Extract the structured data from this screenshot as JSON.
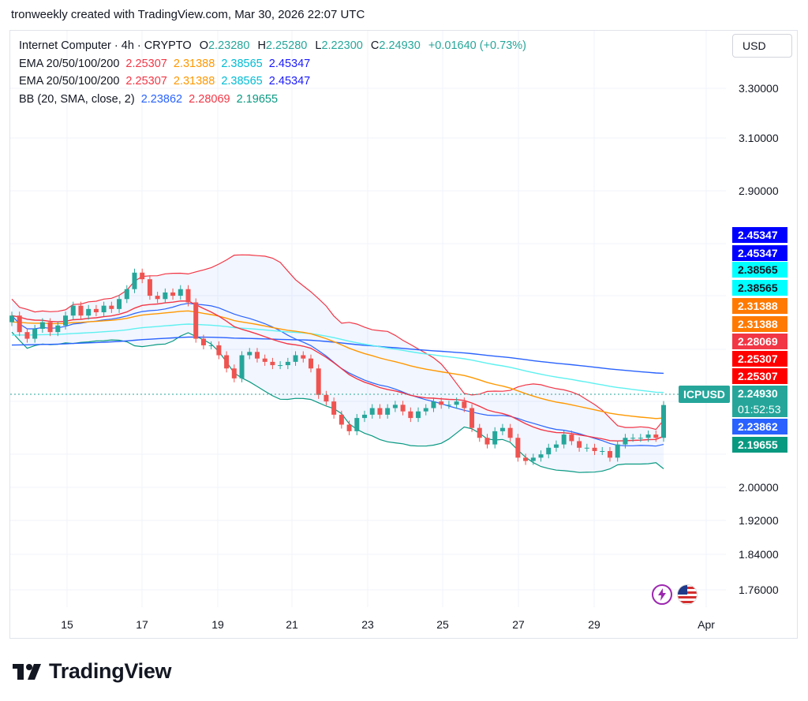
{
  "header": {
    "text": "tronweekly created with TradingView.com, Mar 30, 2026 22:07 UTC"
  },
  "legend": {
    "symbol_row": {
      "name": "Internet Computer · 4h · CRYPTO",
      "o_label": "O",
      "o": "2.23280",
      "h_label": "H",
      "h": "2.25280",
      "l_label": "L",
      "l": "2.22300",
      "c_label": "C",
      "c": "2.24930",
      "change": "+0.01640 (+0.73%)"
    },
    "ema_rows": [
      {
        "label": "EMA 20/50/100/200",
        "values": [
          "2.25307",
          "2.31388",
          "2.38565",
          "2.45347"
        ]
      },
      {
        "label": "EMA 20/50/100/200",
        "values": [
          "2.25307",
          "2.31388",
          "2.38565",
          "2.45347"
        ]
      }
    ],
    "bb_row": {
      "label": "BB (20, SMA, close, 2)",
      "values": [
        "2.23862",
        "2.28069",
        "2.19655"
      ]
    }
  },
  "currency_button": "USD",
  "colors": {
    "up": "#26a69a",
    "down": "#ef5350",
    "ema20": "#f23645",
    "ema50": "#ff9800",
    "ema100": "#5ef0f0",
    "ema200": "#2962ff",
    "bb_basis": "#2962ff",
    "bb_upper": "#f23645",
    "bb_lower": "#089981"
  },
  "last_price": {
    "symbol": "ICPUSD",
    "price": "2.24930",
    "countdown": "01:52:53"
  },
  "right_axis_tags": [
    {
      "value": "2.45347",
      "color": "#0000ff"
    },
    {
      "value": "2.45347",
      "color": "#0000ff"
    },
    {
      "value": "2.38565",
      "color": "#00ffff"
    },
    {
      "value": "2.38565",
      "color": "#00ffff"
    },
    {
      "value": "2.31388",
      "color": "#ff7a00"
    },
    {
      "value": "2.31388",
      "color": "#ff7a00"
    },
    {
      "value": "2.28069",
      "color": "#f23645"
    },
    {
      "value": "2.25307",
      "color": "#ff0000"
    },
    {
      "value": "2.25307",
      "color": "#ff0000"
    },
    {
      "value": "2.23862",
      "color": "#2962ff"
    },
    {
      "value": "2.19655",
      "color": "#089981"
    }
  ],
  "icons": [
    "lightning-icon",
    "us-flag-icon"
  ],
  "brand": {
    "name": "TradingView"
  },
  "chart_data": {
    "type": "candlestick",
    "title": "Internet Computer · 4h · CRYPTO",
    "y_axis_ticks": [
      "3.30000",
      "3.10000",
      "2.90000",
      "2.00000",
      "1.92000",
      "1.84000",
      "1.76000"
    ],
    "x_axis_ticks": [
      "15",
      "17",
      "19",
      "21",
      "23",
      "25",
      "27",
      "29",
      "Apr"
    ],
    "ylim": [
      1.72,
      3.43
    ],
    "grid": true,
    "candles_close": [
      2.52,
      2.47,
      2.45,
      2.48,
      2.5,
      2.47,
      2.49,
      2.52,
      2.55,
      2.52,
      2.54,
      2.53,
      2.55,
      2.54,
      2.57,
      2.6,
      2.65,
      2.63,
      2.58,
      2.57,
      2.59,
      2.58,
      2.6,
      2.56,
      2.45,
      2.43,
      2.43,
      2.4,
      2.36,
      2.33,
      2.4,
      2.41,
      2.39,
      2.38,
      2.37,
      2.37,
      2.38,
      2.4,
      2.39,
      2.36,
      2.28,
      2.26,
      2.22,
      2.19,
      2.17,
      2.21,
      2.22,
      2.24,
      2.22,
      2.24,
      2.25,
      2.23,
      2.21,
      2.23,
      2.24,
      2.26,
      2.25,
      2.25,
      2.26,
      2.24,
      2.18,
      2.15,
      2.13,
      2.17,
      2.18,
      2.15,
      2.09,
      2.08,
      2.09,
      2.1,
      2.12,
      2.13,
      2.16,
      2.14,
      2.12,
      2.12,
      2.11,
      2.11,
      2.09,
      2.13,
      2.15,
      2.15,
      2.15,
      2.16,
      2.15,
      2.2493
    ]
  }
}
